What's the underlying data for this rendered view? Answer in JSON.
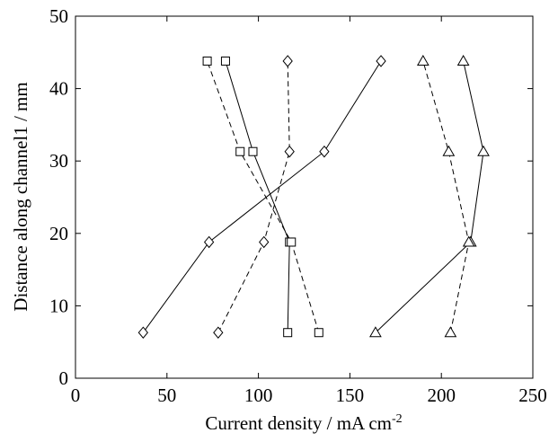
{
  "chart_data": {
    "type": "line",
    "title": "",
    "xlabel": "Current density / mA cm",
    "xlabel_superscript": "-2",
    "ylabel": "Distance along channel1 / mm",
    "xlim": [
      0,
      250
    ],
    "ylim": [
      0,
      50
    ],
    "xticks": [
      0,
      50,
      100,
      150,
      200,
      250
    ],
    "yticks": [
      0,
      10,
      20,
      30,
      40,
      50
    ],
    "xtick_labels": [
      "0",
      "50",
      "100",
      "150",
      "200",
      "250"
    ],
    "ytick_labels": [
      "0",
      "10",
      "20",
      "30",
      "40",
      "50"
    ],
    "grid": false,
    "legend": "none",
    "series": [
      {
        "marker": "square",
        "line": "solid",
        "points": [
          [
            116,
            6.3
          ],
          [
            117,
            18.8
          ],
          [
            97,
            31.3
          ],
          [
            82,
            43.8
          ]
        ]
      },
      {
        "marker": "square",
        "line": "dashed",
        "points": [
          [
            133,
            6.3
          ],
          [
            118,
            18.8
          ],
          [
            90,
            31.3
          ],
          [
            72,
            43.8
          ]
        ]
      },
      {
        "marker": "diamond",
        "line": "solid",
        "points": [
          [
            37,
            6.3
          ],
          [
            73,
            18.8
          ],
          [
            136,
            31.3
          ],
          [
            167,
            43.8
          ]
        ]
      },
      {
        "marker": "diamond",
        "line": "dashed",
        "points": [
          [
            78,
            6.3
          ],
          [
            103,
            18.8
          ],
          [
            117,
            31.3
          ],
          [
            116,
            43.8
          ]
        ]
      },
      {
        "marker": "triangle",
        "line": "solid",
        "points": [
          [
            164,
            6.3
          ],
          [
            216,
            18.8
          ],
          [
            223,
            31.3
          ],
          [
            212,
            43.8
          ]
        ]
      },
      {
        "marker": "triangle",
        "line": "dashed",
        "points": [
          [
            205,
            6.3
          ],
          [
            215,
            18.8
          ],
          [
            204,
            31.3
          ],
          [
            190,
            43.8
          ]
        ]
      }
    ]
  }
}
